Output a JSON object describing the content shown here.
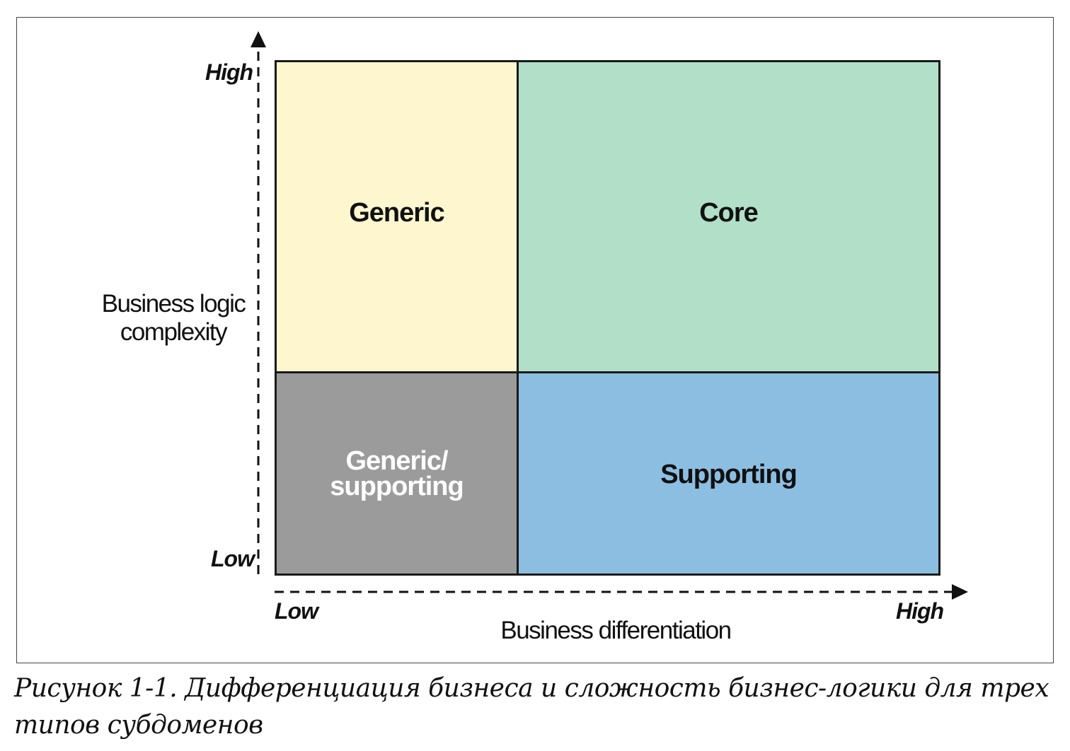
{
  "diagram": {
    "quadrants": {
      "top_left": {
        "label": "Generic",
        "color": "#fdf6cf"
      },
      "top_right": {
        "label": "Core",
        "color": "#b1dfc8"
      },
      "bottom_left": {
        "label_line1": "Generic/",
        "label_line2": "supporting",
        "color": "#9b9b9b"
      },
      "bottom_right": {
        "label": "Supporting",
        "color": "#8cbee2"
      }
    },
    "y_axis": {
      "title_line1": "Business logic",
      "title_line2": "complexity",
      "high_label": "High",
      "low_label": "Low"
    },
    "x_axis": {
      "title": "Business differentiation",
      "low_label": "Low",
      "high_label": "High"
    }
  },
  "caption": "Рисунок 1-1. Дифференциация бизнеса и сложность бизнес-логики для трех типов субдоменов"
}
